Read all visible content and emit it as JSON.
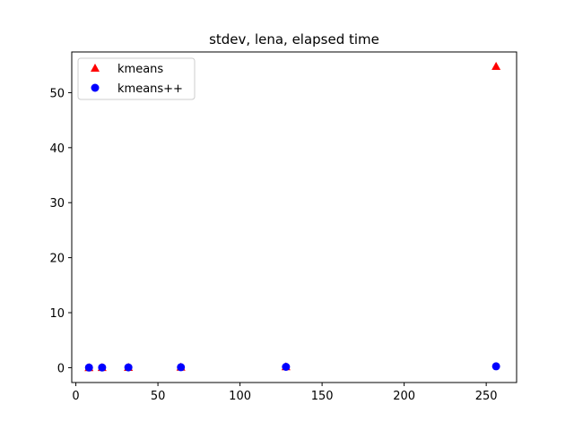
{
  "chart_data": {
    "type": "scatter",
    "title": "stdev, lena, elapsed time",
    "xlabel": "",
    "ylabel": "",
    "xlim": [
      -2.5,
      268.5
    ],
    "ylim": [
      -2.7,
      57.4
    ],
    "xticks": [
      0,
      50,
      100,
      150,
      200,
      250
    ],
    "yticks": [
      0,
      10,
      20,
      30,
      40,
      50
    ],
    "grid": false,
    "legend_position": "top-left",
    "series": [
      {
        "name": "kmeans",
        "marker": "triangle",
        "color": "#ff0000",
        "x": [
          8,
          16,
          32,
          64,
          128,
          256
        ],
        "y": [
          0.02,
          0.04,
          0.06,
          0.1,
          0.2,
          54.8
        ]
      },
      {
        "name": "kmeans++",
        "marker": "circle",
        "color": "#0000ff",
        "x": [
          8,
          16,
          32,
          64,
          128,
          256
        ],
        "y": [
          0.02,
          0.03,
          0.05,
          0.08,
          0.15,
          0.25
        ]
      }
    ]
  }
}
